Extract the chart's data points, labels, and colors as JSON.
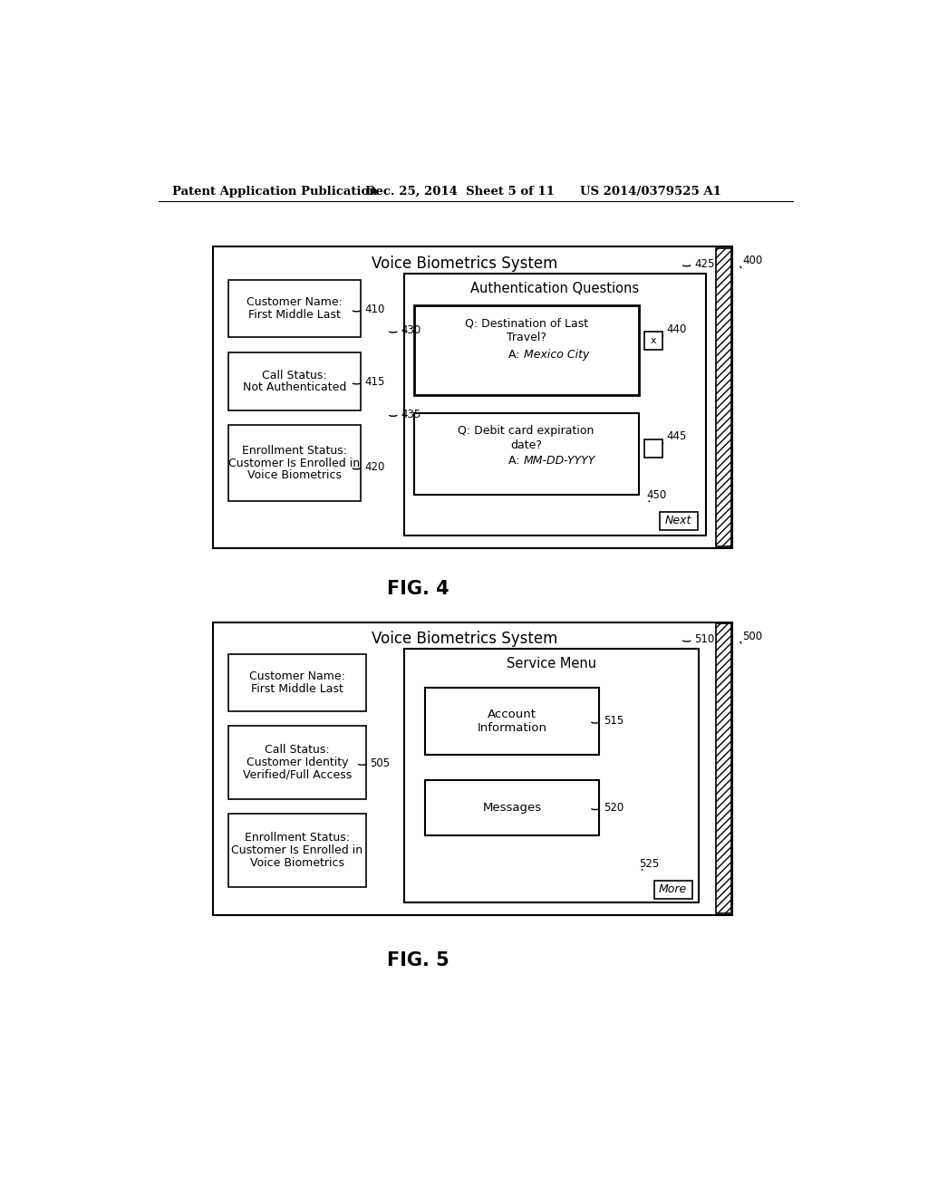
{
  "background_color": "#ffffff",
  "header_text": "Patent Application Publication",
  "header_date": "Dec. 25, 2014  Sheet 5 of 11",
  "header_patent": "US 2014/0379525 A1",
  "fig4_label": "FIG. 4",
  "fig5_label": "FIG. 5",
  "fig4_ref": "400",
  "fig5_ref": "500",
  "fig4": {
    "title": "Voice Biometrics System",
    "title_ref": "425",
    "left_boxes": [
      {
        "text": "Customer Name:\nFirst Middle Last",
        "ref": "410"
      },
      {
        "text": "Call Status:\nNot Authenticated",
        "ref": "415"
      },
      {
        "text": "Enrollment Status:\nCustomer Is Enrolled in\nVoice Biometrics",
        "ref": "420"
      }
    ],
    "connector_refs": [
      "430",
      "435"
    ],
    "right_panel_title": "Authentication Questions",
    "right_boxes": [
      {
        "lines": [
          "Q: Destination of Last",
          "Travel?"
        ],
        "answer": "Mexico City",
        "ref": "440",
        "has_x_button": true
      },
      {
        "lines": [
          "Q: Debit card expiration",
          "date?"
        ],
        "answer": "MM-DD-YYYY",
        "ref": "445",
        "has_x_button": false
      }
    ],
    "next_button": {
      "text": "Next",
      "ref": "450"
    }
  },
  "fig5": {
    "title": "Voice Biometrics System",
    "title_ref": "510",
    "left_boxes": [
      {
        "text": "Customer Name:\nFirst Middle Last",
        "ref": ""
      },
      {
        "text": "Call Status:\nCustomer Identity\nVerified/Full Access",
        "ref": "505"
      },
      {
        "text": "Enrollment Status:\nCustomer Is Enrolled in\nVoice Biometrics",
        "ref": ""
      }
    ],
    "right_panel_title": "Service Menu",
    "right_boxes": [
      {
        "lines": [
          "Account",
          "Information"
        ],
        "ref": "515"
      },
      {
        "lines": [
          "Messages"
        ],
        "ref": "520"
      }
    ],
    "more_button": {
      "text": "More",
      "ref": "525"
    }
  }
}
